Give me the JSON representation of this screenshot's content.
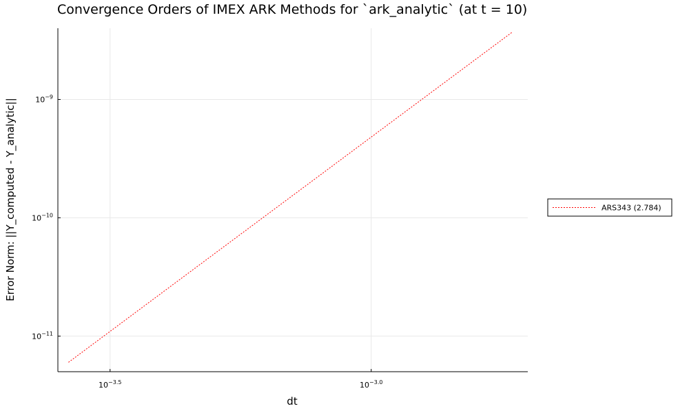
{
  "chart_data": {
    "type": "line",
    "title": "Convergence Orders of IMEX ARK Methods for `ark_analytic` (at t = 10)",
    "xlabel": "dt",
    "ylabel": "Error Norm: ||Y_computed - Y_analytic||",
    "xscale": "log10",
    "yscale": "log10",
    "xlim": [
      0.000251,
      0.001995
    ],
    "ylim": [
      5e-12,
      4e-09
    ],
    "grid": true,
    "legend_position": "outside-right",
    "x_ticks": [
      {
        "value": 0.000316,
        "base": "10",
        "exp": "−3.5"
      },
      {
        "value": 0.001,
        "base": "10",
        "exp": "−3.0"
      }
    ],
    "y_ticks": [
      {
        "value": 1e-11,
        "base": "10",
        "exp": "−11"
      },
      {
        "value": 1e-10,
        "base": "10",
        "exp": "−10"
      },
      {
        "value": 1e-09,
        "base": "10",
        "exp": "−9"
      }
    ],
    "series": [
      {
        "name": "ARS343 (2.784)",
        "color": "#ff0000",
        "line_style": "dotted",
        "x": [
          0.000263,
          0.001862
        ],
        "y": [
          6e-12,
          3.7e-09
        ]
      }
    ]
  }
}
